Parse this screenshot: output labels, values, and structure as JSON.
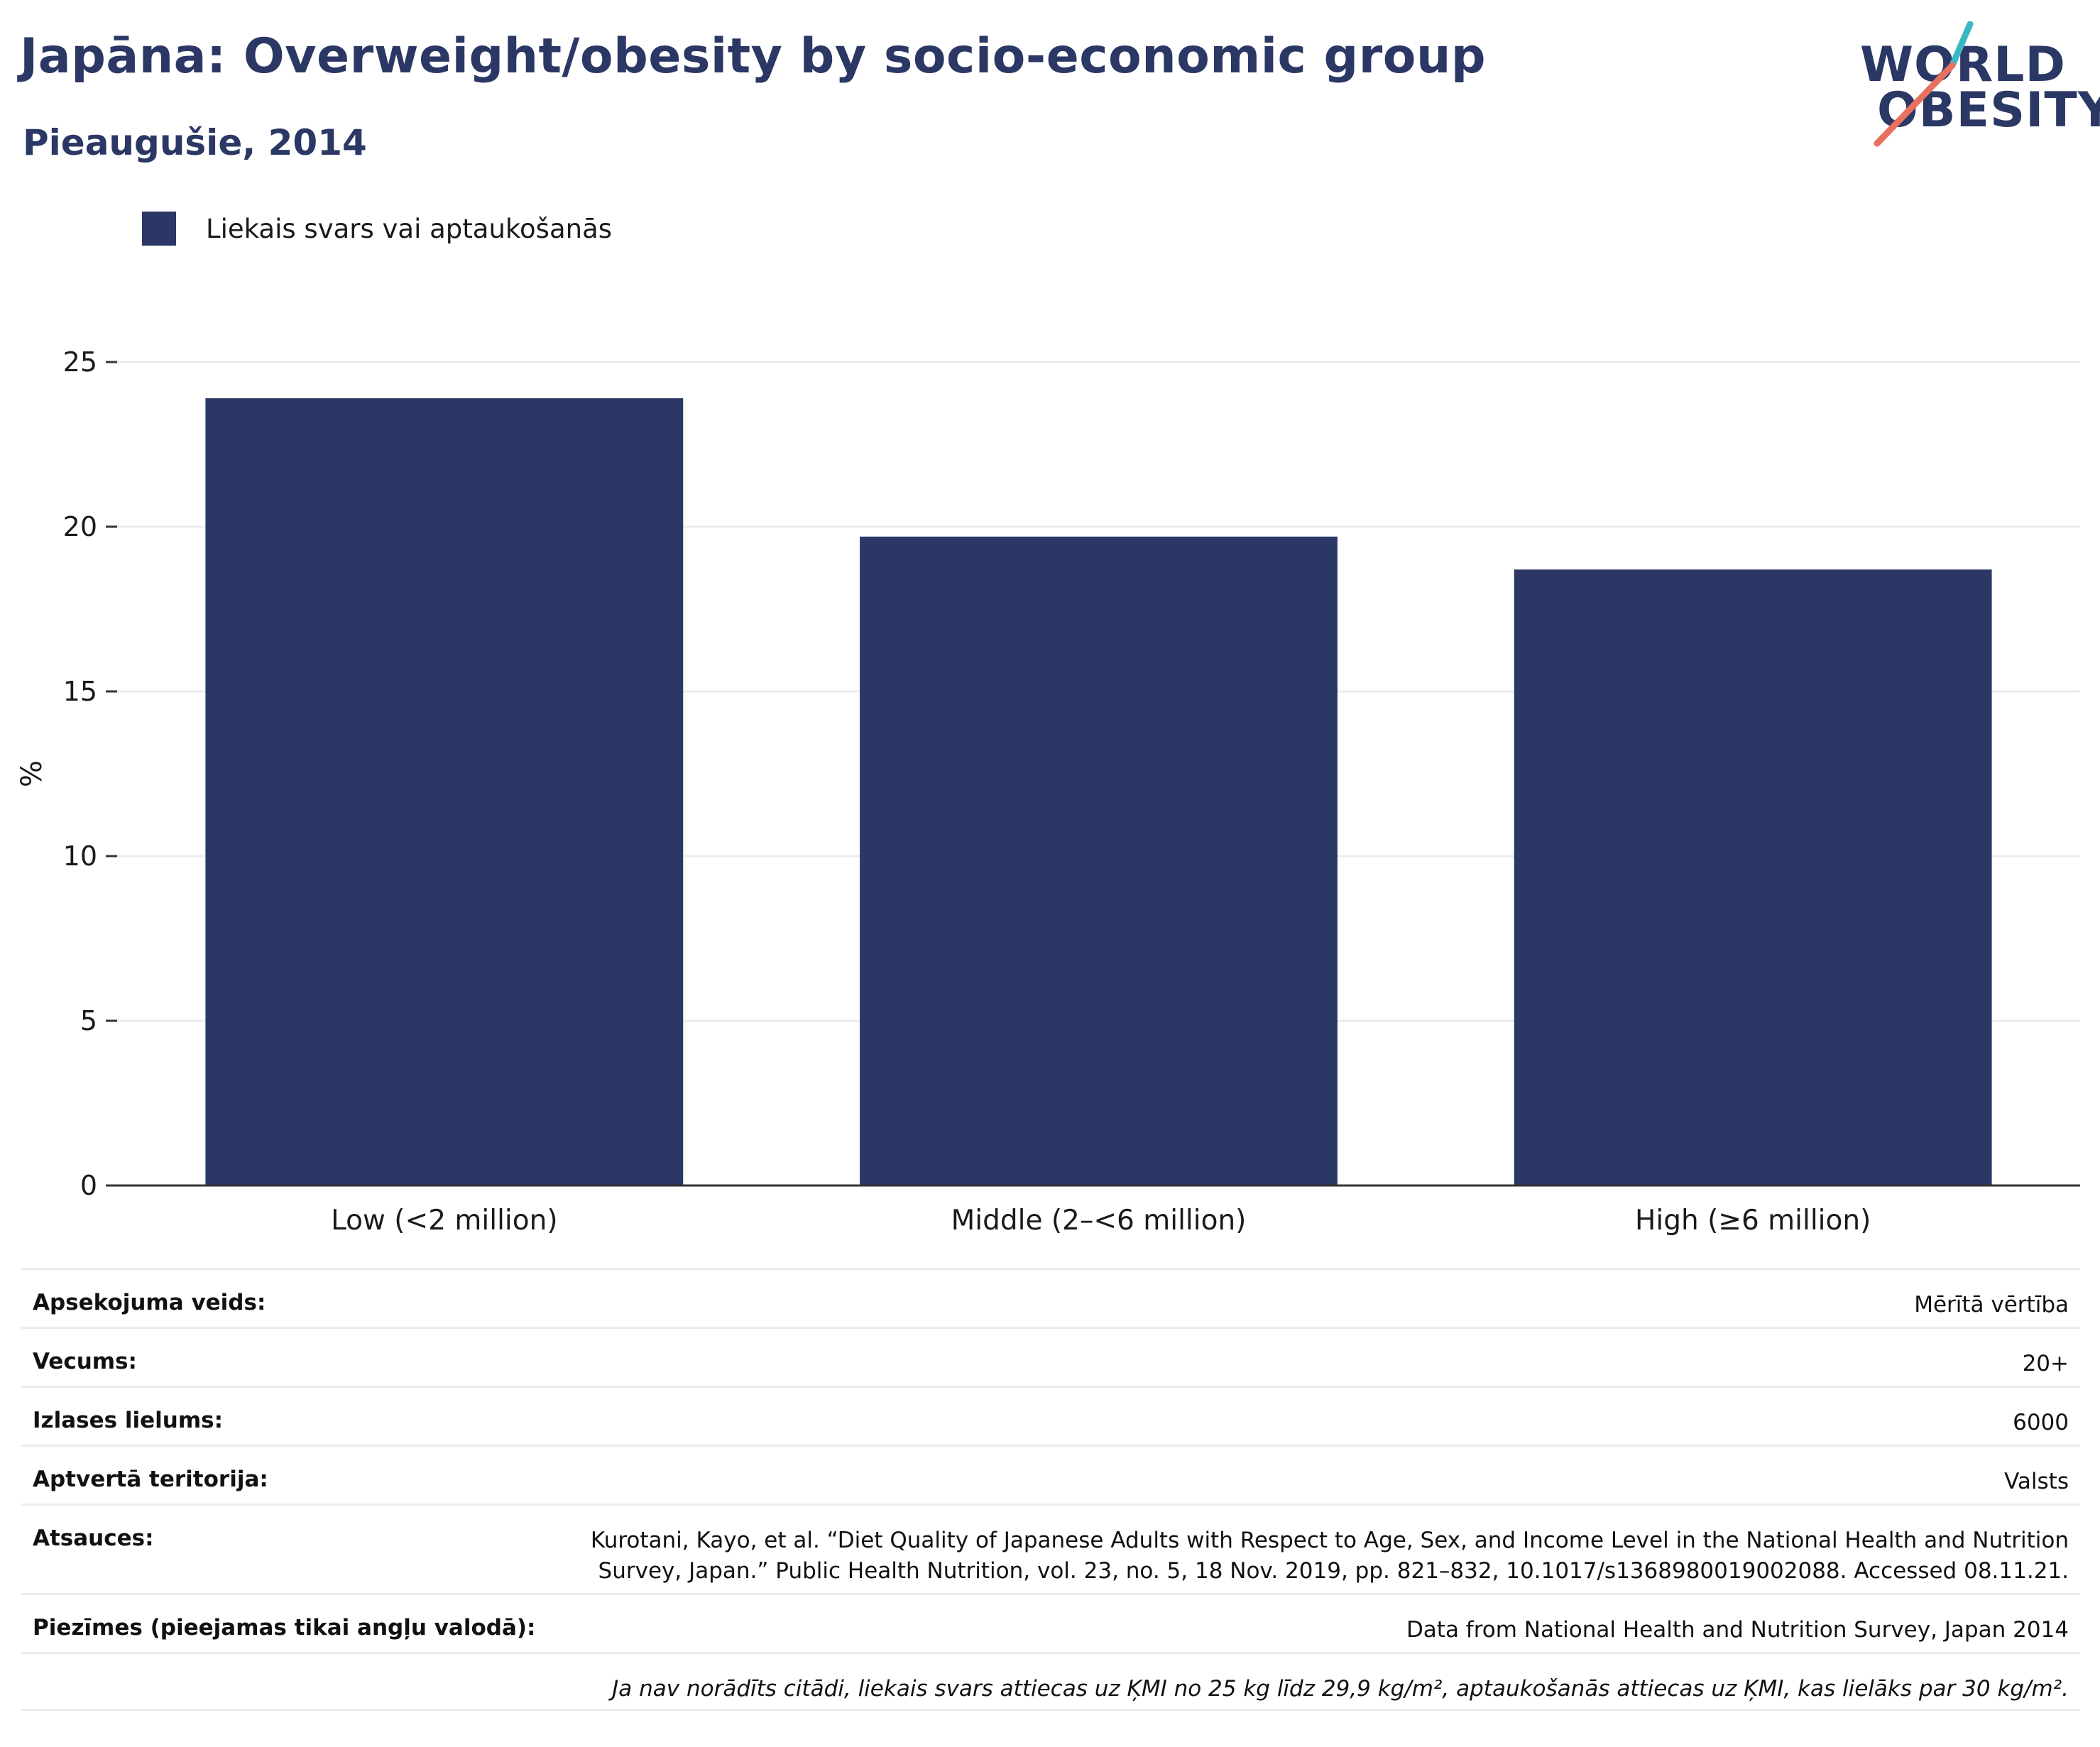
{
  "header": {
    "title": "Japāna: Overweight/obesity by socio-economic group",
    "subtitle": "Pieaugušie, 2014"
  },
  "logo": {
    "line1": "WORLD",
    "line2": "OBESITY"
  },
  "colors": {
    "bar": "#2b3764",
    "brand_teal": "#3bb8c3",
    "brand_coral": "#e8705e",
    "grid": "#ececec"
  },
  "legend": {
    "items": [
      {
        "label": "Liekais svars vai aptaukošanās"
      }
    ]
  },
  "chart_data": {
    "type": "bar",
    "categories": [
      "Low (<2 million)",
      "Middle (2–<6 million)",
      "High (≥6 million)"
    ],
    "series": [
      {
        "name": "Liekais svars vai aptaukošanās",
        "values": [
          23.9,
          19.7,
          18.7
        ]
      }
    ],
    "ylabel": "%",
    "ylim": [
      0,
      25
    ],
    "yticks": [
      "0",
      "5",
      "10",
      "15",
      "20",
      "25"
    ],
    "grid": true,
    "legend_position": "top-left"
  },
  "meta": {
    "rows": [
      {
        "key": "Apsekojuma veids:",
        "value": "Mērītā vērtība"
      },
      {
        "key": "Vecums:",
        "value": "20+"
      },
      {
        "key": "Izlases lielums:",
        "value": "6000"
      },
      {
        "key": "Aptvertā teritorija:",
        "value": "Valsts"
      },
      {
        "key": "Atsauces:",
        "value_line1": "Kurotani, Kayo, et al. “Diet Quality of Japanese Adults with Respect to Age, Sex, and Income Level in the National Health and Nutrition",
        "value_line2": "Survey, Japan.” Public Health Nutrition, vol. 23, no. 5, 18 Nov. 2019, pp. 821–832, 10.1017/s1368980019002088. Accessed 08.11.21."
      },
      {
        "key": "Piezīmes (pieejamas tikai angļu valodā):",
        "value": "Data from National Health and Nutrition Survey, Japan 2014"
      }
    ],
    "footnote": "Ja nav norādīts citādi, liekais svars attiecas uz ĶMI no 25 kg līdz 29,9 kg/m², aptaukošanās attiecas uz ĶMI, kas lielāks par 30 kg/m²."
  }
}
